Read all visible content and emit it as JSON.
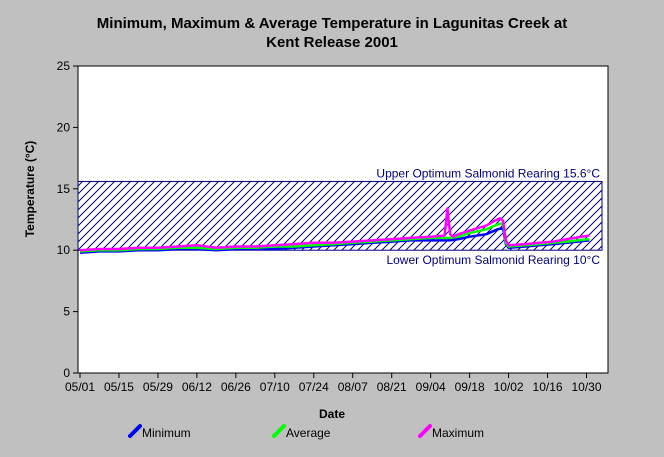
{
  "chart_data": {
    "type": "line",
    "title": [
      "Minimum, Maximum & Average Temperature in Lagunitas Creek at",
      "Kent Release 2001"
    ],
    "xlabel": "Date",
    "ylabel": "Temperature (°C)",
    "ylim": [
      0,
      25
    ],
    "yticks": [
      0,
      5,
      10,
      15,
      20,
      25
    ],
    "xlim": [
      "05/01",
      "11/06"
    ],
    "xticks": [
      "05/01",
      "05/15",
      "05/29",
      "06/12",
      "06/26",
      "07/10",
      "07/24",
      "08/07",
      "08/21",
      "09/04",
      "09/18",
      "10/02",
      "10/16",
      "10/30"
    ],
    "grid": false,
    "legend_position": "bottom",
    "band": {
      "upper": 15.6,
      "lower": 10,
      "upper_label": "Upper Optimum Salmonid Rearing 15.6°C",
      "lower_label": "Lower Optimum Salmonid Rearing 10°C",
      "color": "#000080"
    },
    "series": [
      {
        "name": "Minimum",
        "color": "#0000ff",
        "x": [
          0,
          7,
          14,
          21,
          28,
          35,
          42,
          49,
          56,
          63,
          70,
          77,
          84,
          91,
          98,
          105,
          112,
          119,
          126,
          133,
          136,
          140,
          146,
          150,
          152,
          153,
          154,
          160,
          165,
          170,
          175,
          183
        ],
        "values": [
          9.8,
          9.9,
          9.9,
          10.0,
          10.0,
          10.1,
          10.1,
          10.0,
          10.1,
          10.1,
          10.1,
          10.2,
          10.3,
          10.4,
          10.5,
          10.6,
          10.7,
          10.8,
          10.8,
          10.8,
          10.9,
          11.1,
          11.3,
          11.7,
          11.8,
          10.5,
          10.2,
          10.3,
          10.4,
          10.5,
          10.6,
          10.8
        ]
      },
      {
        "name": "Average",
        "color": "#00ff00",
        "x": [
          0,
          7,
          14,
          21,
          28,
          35,
          42,
          49,
          56,
          63,
          70,
          77,
          84,
          91,
          98,
          105,
          112,
          119,
          126,
          133,
          136,
          140,
          146,
          150,
          152,
          153,
          154,
          160,
          165,
          170,
          175,
          183
        ],
        "values": [
          9.9,
          10.0,
          10.0,
          10.1,
          10.1,
          10.2,
          10.2,
          10.1,
          10.2,
          10.2,
          10.3,
          10.3,
          10.4,
          10.5,
          10.6,
          10.7,
          10.8,
          10.9,
          11.0,
          11.0,
          11.1,
          11.4,
          11.7,
          12.1,
          12.2,
          10.6,
          10.3,
          10.4,
          10.5,
          10.6,
          10.7,
          10.9
        ]
      },
      {
        "name": "Maximum",
        "color": "#ff00ff",
        "x": [
          0,
          7,
          14,
          21,
          28,
          35,
          42,
          49,
          56,
          63,
          70,
          77,
          84,
          91,
          98,
          105,
          112,
          119,
          126,
          131,
          132,
          133,
          134,
          136,
          140,
          146,
          149,
          151,
          152,
          153,
          154,
          160,
          165,
          170,
          175,
          183
        ],
        "values": [
          10.0,
          10.1,
          10.1,
          10.2,
          10.2,
          10.3,
          10.4,
          10.2,
          10.3,
          10.3,
          10.4,
          10.5,
          10.6,
          10.6,
          10.7,
          10.8,
          10.9,
          11.0,
          11.1,
          11.2,
          13.4,
          11.3,
          11.1,
          11.3,
          11.6,
          12.0,
          12.4,
          12.6,
          12.4,
          10.8,
          10.4,
          10.5,
          10.6,
          10.7,
          10.9,
          11.2
        ]
      }
    ]
  }
}
